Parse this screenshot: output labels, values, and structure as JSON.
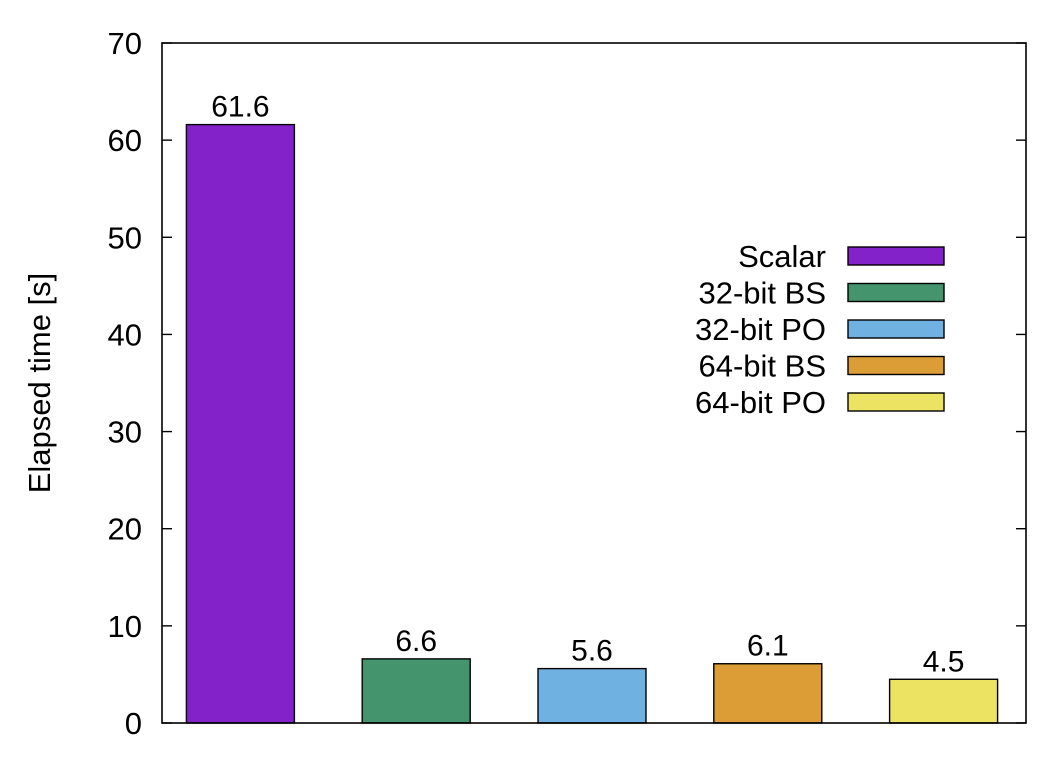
{
  "chart_data": {
    "type": "bar",
    "title": "",
    "xlabel": "",
    "ylabel": "Elapsed time [s]",
    "ylim": [
      0,
      70
    ],
    "yticks": [
      0,
      10,
      20,
      30,
      40,
      50,
      60,
      70
    ],
    "grid": false,
    "legend_position": "right",
    "series": [
      {
        "name": "Scalar",
        "value": 61.6,
        "label": "61.6",
        "color": "#8322c9"
      },
      {
        "name": "32-bit BS",
        "value": 6.6,
        "label": "6.6",
        "color": "#44956d"
      },
      {
        "name": "32-bit PO",
        "value": 5.6,
        "label": "5.6",
        "color": "#6fb2e1"
      },
      {
        "name": "64-bit BS",
        "value": 6.1,
        "label": "6.1",
        "color": "#dc9d37"
      },
      {
        "name": "64-bit PO",
        "value": 4.5,
        "label": "4.5",
        "color": "#ebe361"
      }
    ]
  }
}
